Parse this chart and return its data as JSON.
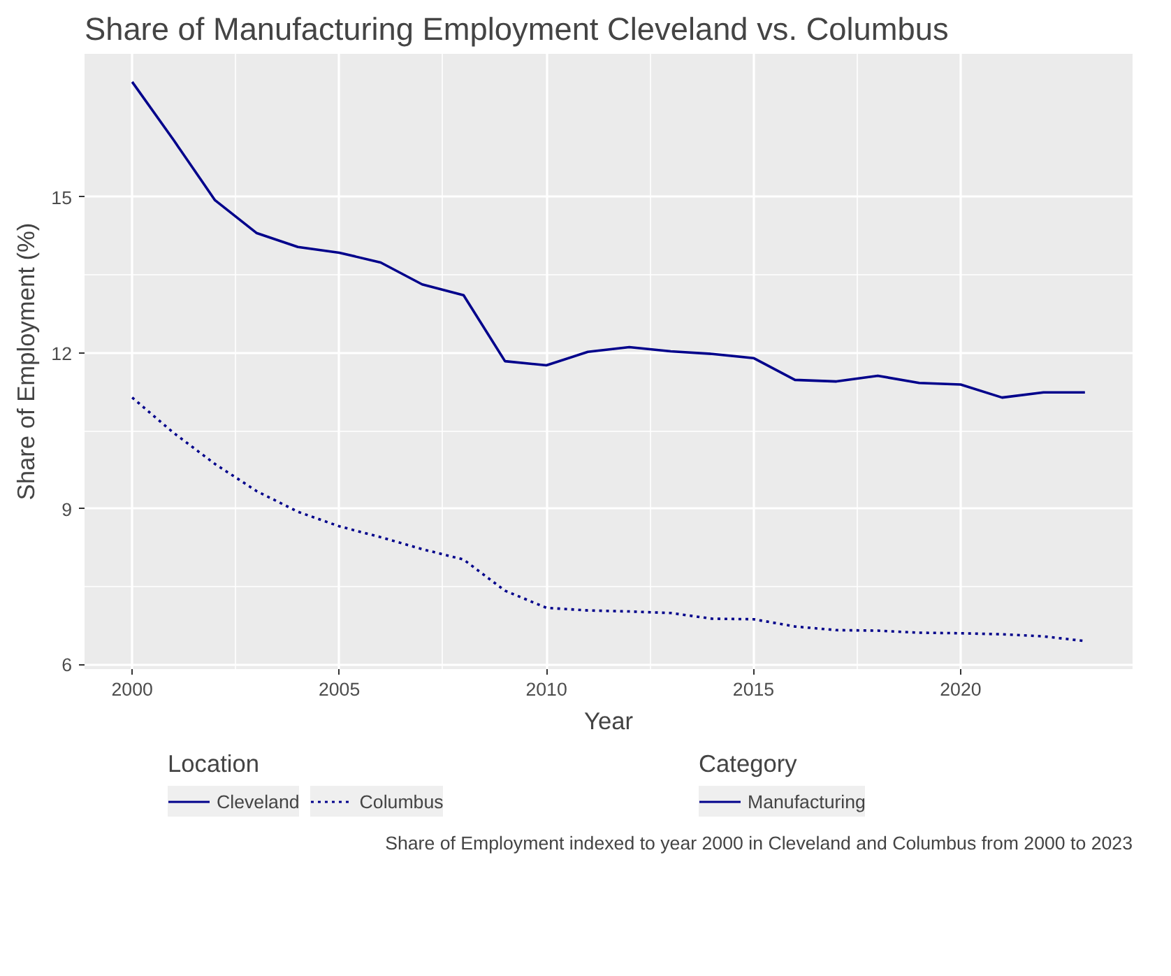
{
  "chart_data": {
    "type": "line",
    "title": "Share of Manufacturing Employment Cleveland vs. Columbus",
    "xlabel": "Year",
    "ylabel": "Share of Employment (%)",
    "legend_title": "Location",
    "x": [
      2000,
      2001,
      2002,
      2003,
      2004,
      2005,
      2006,
      2007,
      2008,
      2009,
      2010,
      2011,
      2012,
      2013,
      2014,
      2015,
      2016,
      2017,
      2018,
      2019,
      2020,
      2021,
      2022,
      2023
    ],
    "series": [
      {
        "name": "Cleveland",
        "color": "#00008b",
        "line_style": "solid",
        "values": [
          17.22,
          16.1,
          14.94,
          14.31,
          14.04,
          13.93,
          13.74,
          13.32,
          13.11,
          11.84,
          11.76,
          12.02,
          12.11,
          12.03,
          11.98,
          11.9,
          11.48,
          11.45,
          11.56,
          11.42,
          11.39,
          11.14,
          11.24,
          11.24
        ]
      },
      {
        "name": "Columbus",
        "color": "#00008b",
        "line_style": "dotted",
        "values": [
          11.14,
          10.46,
          9.86,
          9.34,
          8.94,
          8.66,
          8.45,
          8.22,
          8.02,
          7.42,
          7.09,
          7.04,
          7.02,
          6.99,
          6.88,
          6.87,
          6.73,
          6.66,
          6.65,
          6.61,
          6.6,
          6.58,
          6.54,
          6.45
        ]
      }
    ],
    "xlim": [
      1998.85,
      2024.15
    ],
    "ylim": [
      5.91,
      17.76
    ],
    "xticks": [
      2000,
      2005,
      2010,
      2015,
      2020
    ],
    "yticks": [
      6,
      9,
      12,
      15
    ],
    "grid": true,
    "legend": "bottom",
    "marker": "none",
    "annotations": [
      "Category",
      "Manufacturing",
      "Share of Employment indexed to year 2000 in Cleveland and Columbus from 2000 to 2023"
    ]
  }
}
